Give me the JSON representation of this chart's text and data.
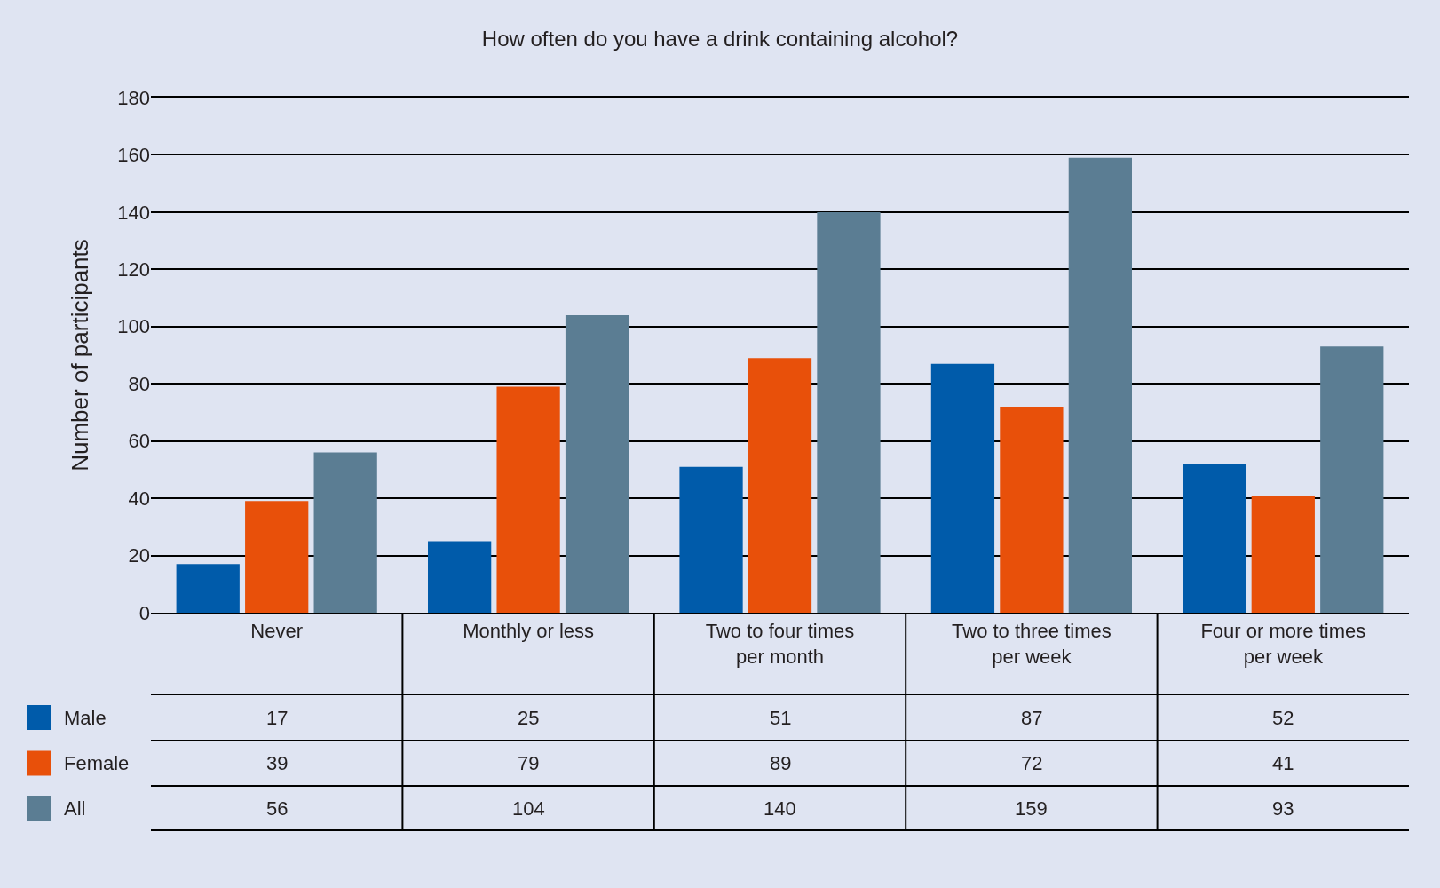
{
  "chart_data": {
    "type": "bar",
    "title": "How often do you have a drink containing alcohol?",
    "ylabel": "Number of participants",
    "categories": [
      "Never",
      "Monthly or less",
      "Two to four times per month",
      "Two to three times per week",
      "Four or more times per week"
    ],
    "series": [
      {
        "name": "Male",
        "color": "#005baa",
        "values": [
          17,
          25,
          51,
          87,
          52
        ]
      },
      {
        "name": "Female",
        "color": "#e8500a",
        "values": [
          39,
          79,
          89,
          72,
          41
        ]
      },
      {
        "name": "All",
        "color": "#5b7d93",
        "values": [
          56,
          104,
          140,
          159,
          93
        ]
      }
    ],
    "ylim": [
      0,
      180
    ],
    "yticks": [
      0,
      20,
      40,
      60,
      80,
      100,
      120,
      140,
      160,
      180
    ],
    "grid": "y",
    "data_labels": true,
    "legend": "bottom left"
  }
}
